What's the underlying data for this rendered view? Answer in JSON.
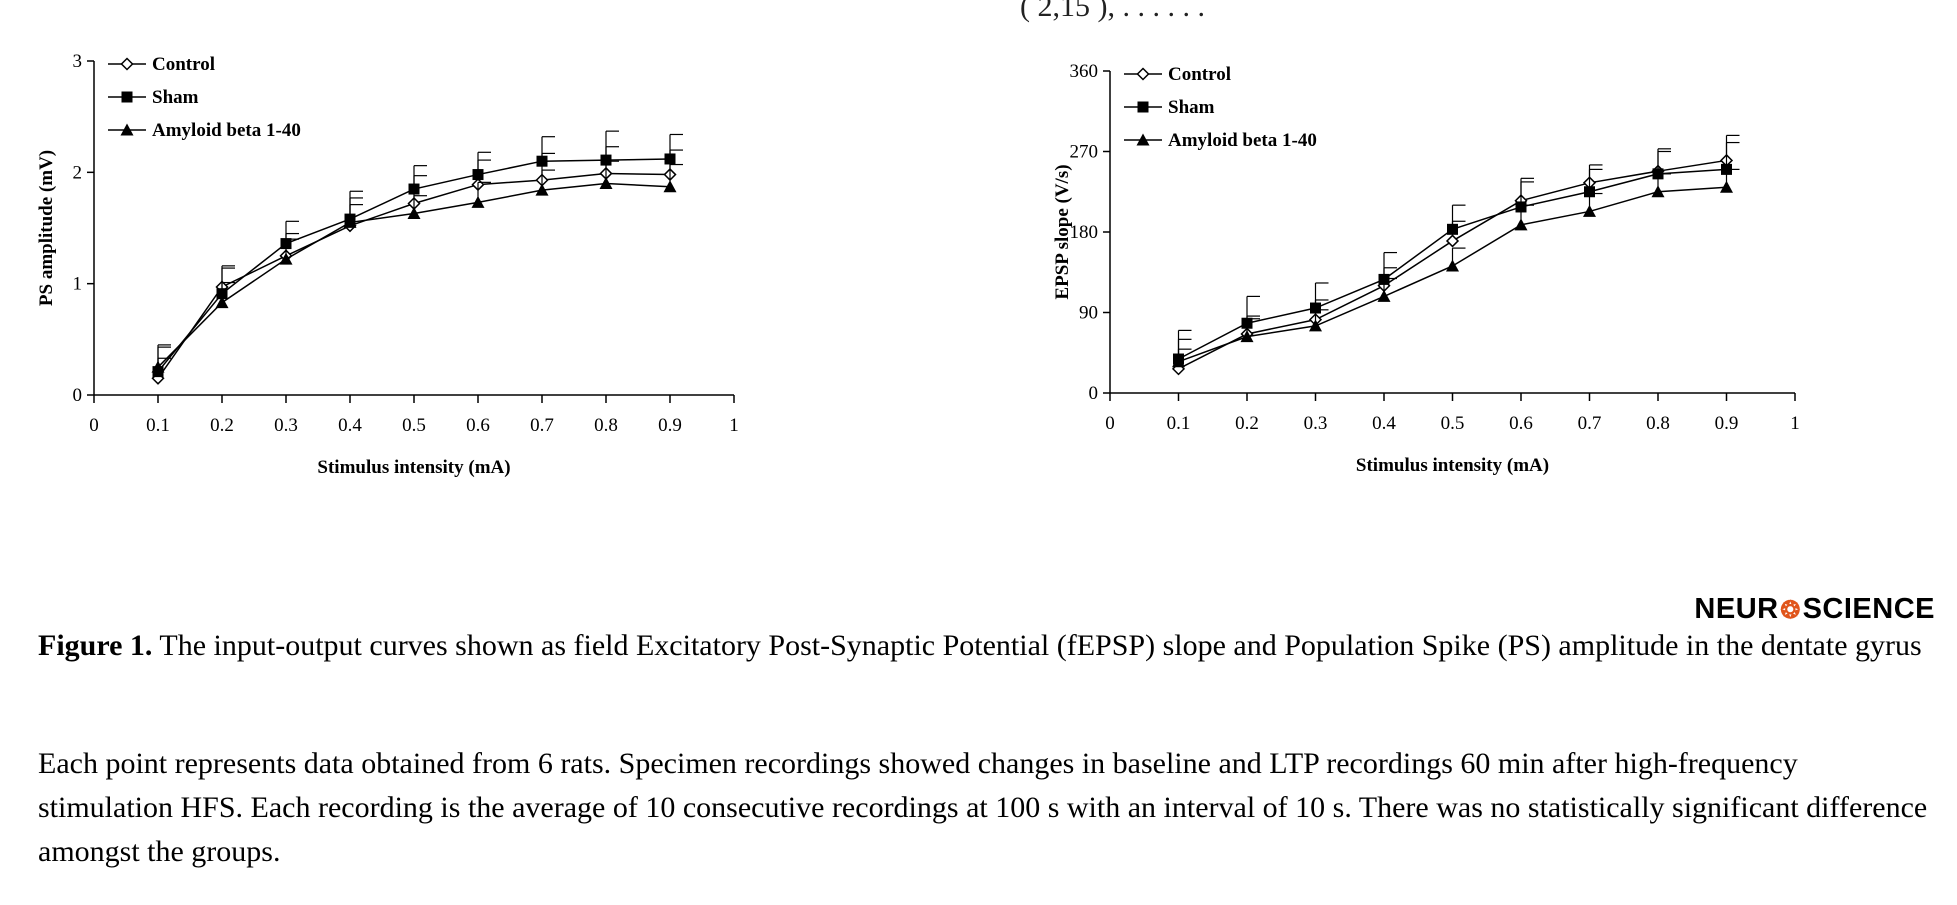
{
  "header_fragment": "( 2,15                                 ), . . . . . .",
  "figure": {
    "label": "Figure 1.",
    "caption": "The input-output curves shown as field Excitatory Post-Synaptic Potential (fEPSP) slope and Population Spike (PS) amplitude in the dentate gyrus"
  },
  "body_text": "Each point represents data obtained from 6 rats. Specimen recordings showed changes in baseline and LTP recordings 60 min after high-frequency stimulation HFS. Each recording is the average of 10 consecutive recordings at 100 s with an interval of 10 s. There was no statistically significant difference amongst the groups.",
  "logo": {
    "left": "NEUR",
    "mark": "❂",
    "right": "SCIENCE"
  },
  "chart_data": [
    {
      "type": "line",
      "title": "",
      "xlabel": "Stimulus intensity (mA)",
      "ylabel": "PS amplitude (mV)",
      "xlim": [
        0,
        1
      ],
      "ylim": [
        0,
        3
      ],
      "xticks": [
        "0",
        "0.1",
        "0.2",
        "0.3",
        "0.4",
        "0.5",
        "0.6",
        "0.7",
        "0.8",
        "0.9",
        "1"
      ],
      "yticks": [
        "0",
        "1",
        "2",
        "3"
      ],
      "legend": "top-left",
      "x": [
        0.1,
        0.2,
        0.3,
        0.4,
        0.5,
        0.6,
        0.7,
        0.8,
        0.9
      ],
      "series": [
        {
          "name": "Control",
          "marker": "diamond-open",
          "values": [
            0.15,
            0.97,
            1.25,
            1.52,
            1.72,
            1.89,
            1.93,
            1.99,
            1.98
          ],
          "errors": [
            0.18,
            0.17,
            0.2,
            0.25,
            0.25,
            0.22,
            0.24,
            0.24,
            0.22
          ]
        },
        {
          "name": "Sham",
          "marker": "square-filled",
          "values": [
            0.21,
            0.91,
            1.36,
            1.58,
            1.85,
            1.98,
            2.1,
            2.11,
            2.12
          ],
          "errors": [
            0.22,
            0.25,
            0.2,
            0.25,
            0.21,
            0.2,
            0.22,
            0.26,
            0.22
          ]
        },
        {
          "name": "Amyloid beta 1-40",
          "marker": "triangle-filled",
          "values": [
            0.25,
            0.83,
            1.22,
            1.55,
            1.63,
            1.73,
            1.84,
            1.9,
            1.87
          ],
          "errors": [
            0.2,
            0.18,
            0.18,
            0.16,
            0.16,
            0.18,
            0.18,
            0.2,
            0.2
          ]
        }
      ]
    },
    {
      "type": "line",
      "title": "",
      "xlabel": "Stimulus intensity (mA)",
      "ylabel": "EPSP slope (V/s)",
      "xlim": [
        0,
        1
      ],
      "ylim": [
        0,
        360
      ],
      "xticks": [
        "0",
        "0.1",
        "0.2",
        "0.3",
        "0.4",
        "0.5",
        "0.6",
        "0.7",
        "0.8",
        "0.9",
        "1"
      ],
      "yticks": [
        "0",
        "90",
        "180",
        "270",
        "360"
      ],
      "legend": "top-left",
      "x": [
        0.1,
        0.2,
        0.3,
        0.4,
        0.5,
        0.6,
        0.7,
        0.8,
        0.9
      ],
      "series": [
        {
          "name": "Control",
          "marker": "diamond-open",
          "values": [
            27,
            66,
            82,
            120,
            170,
            215,
            235,
            248,
            260
          ],
          "errors": [
            22,
            20,
            22,
            20,
            22,
            25,
            20,
            25,
            28
          ]
        },
        {
          "name": "Sham",
          "marker": "square-filled",
          "values": [
            38,
            78,
            95,
            127,
            183,
            208,
            225,
            245,
            250
          ],
          "errors": [
            32,
            30,
            28,
            30,
            27,
            28,
            25,
            25,
            30
          ]
        },
        {
          "name": "Amyloid beta 1-40",
          "marker": "triangle-filled",
          "values": [
            35,
            63,
            75,
            108,
            142,
            188,
            203,
            225,
            230
          ],
          "errors": [
            25,
            20,
            18,
            20,
            20,
            22,
            20,
            20,
            20
          ]
        }
      ]
    }
  ]
}
